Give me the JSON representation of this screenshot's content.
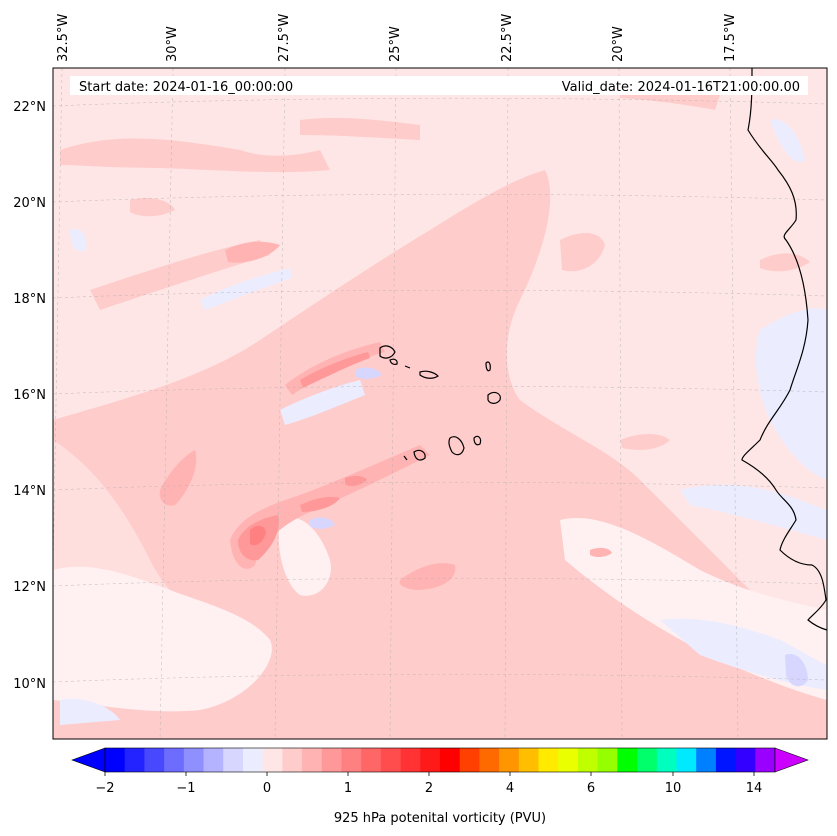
{
  "map": {
    "start_date": "Start date: 2024-01-16_00:00:00",
    "valid_date": "Valid_date: 2024-01-16T21:00:00.00",
    "lon_labels": [
      "32.5°W",
      "30°W",
      "27.5°W",
      "25°W",
      "22.5°W",
      "20°W",
      "17.5°W"
    ],
    "lat_labels": [
      "22°N",
      "20°N",
      "18°N",
      "16°N",
      "14°N",
      "12°N",
      "10°N"
    ],
    "background_color": "#ffe6e6",
    "coast_color": "#000000"
  },
  "colorbar": {
    "label": "925 hPa potenital vorticity (PVU)",
    "tick_labels": [
      "−2",
      "−1",
      "0",
      "1",
      "2",
      "4",
      "6",
      "10",
      "14"
    ],
    "colors": [
      "#0000ff",
      "#2323ff",
      "#4848ff",
      "#6c6cff",
      "#8f8fff",
      "#b3b3ff",
      "#d6d6ff",
      "#ececff",
      "#ffe6e6",
      "#ffcccc",
      "#ffb3b3",
      "#ff9999",
      "#ff8080",
      "#ff6666",
      "#ff4d4d",
      "#ff3333",
      "#ff1a1a",
      "#ff0000",
      "#ff4000",
      "#ff6a00",
      "#ff9500",
      "#ffbf00",
      "#ffea00",
      "#eaff00",
      "#bfff00",
      "#95ff00",
      "#00ff00",
      "#00ff6a",
      "#00ffbf",
      "#00eaff",
      "#0080ff",
      "#0015ff",
      "#3300ff",
      "#9900ff"
    ],
    "extend_min_color": "#0000ff",
    "extend_max_color": "#cc00ff"
  }
}
